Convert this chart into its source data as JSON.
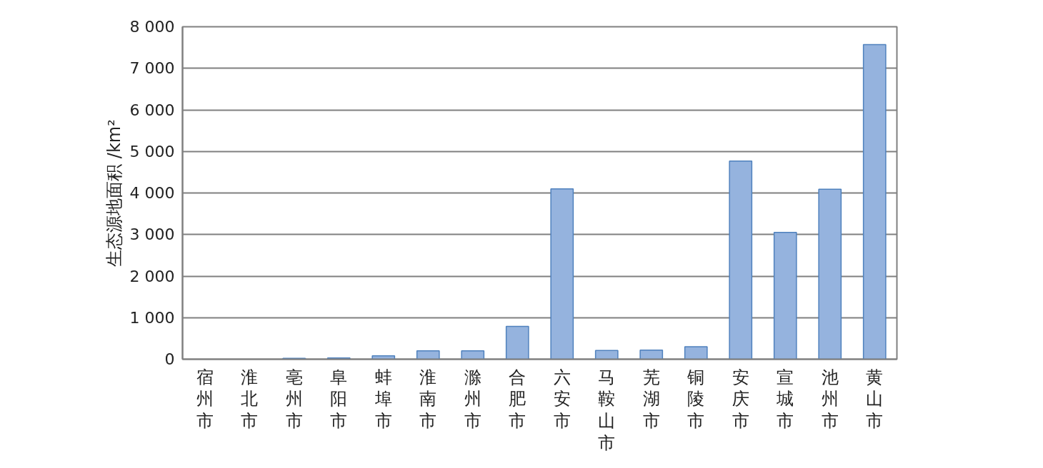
{
  "chart_data": {
    "type": "bar",
    "ylabel": "生态源地面积 /km²",
    "categories": [
      "宿州市",
      "淮北市",
      "亳州市",
      "阜阳市",
      "蚌埠市",
      "淮南市",
      "滁州市",
      "合肥市",
      "六安市",
      "马鞍山市",
      "芜湖市",
      "铜陵市",
      "安庆市",
      "宣城市",
      "池州市",
      "黄山市"
    ],
    "values": [
      0,
      0,
      20,
      30,
      80,
      200,
      200,
      790,
      4100,
      210,
      220,
      300,
      4770,
      3050,
      4090,
      7570
    ],
    "color": "#95b3de",
    "ylim": [
      0,
      8000
    ],
    "yticks": [
      0,
      {
        "value": 1000,
        "label": "1 000"
      },
      {
        "value": 2000,
        "label": "2 000"
      },
      {
        "value": 3000,
        "label": "3 000"
      },
      {
        "value": 4000,
        "label": "4 000"
      },
      {
        "value": 5000,
        "label": "5 000"
      },
      {
        "value": 6000,
        "label": "6 000"
      },
      {
        "value": 7000,
        "label": "7 000"
      },
      {
        "value": 8000,
        "label": "8 000"
      }
    ],
    "grid": "y"
  }
}
